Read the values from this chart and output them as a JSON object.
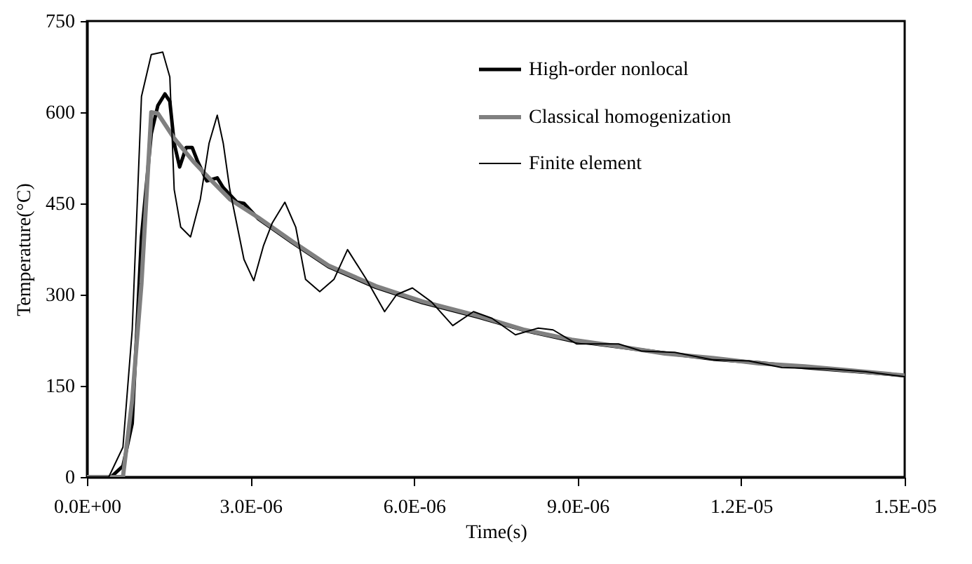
{
  "chart_data": {
    "type": "line",
    "xlabel": "Time(s)",
    "ylabel": "Temperature(°C)",
    "xlim": [
      0,
      1.5e-05
    ],
    "ylim": [
      0,
      750
    ],
    "xticks": [
      {
        "value": 0,
        "label": "0.0E+00"
      },
      {
        "value": 3e-06,
        "label": "3.0E-06"
      },
      {
        "value": 6e-06,
        "label": "6.0E-06"
      },
      {
        "value": 9e-06,
        "label": "9.0E-06"
      },
      {
        "value": 1.2e-05,
        "label": "1.2E-05"
      },
      {
        "value": 1.5e-05,
        "label": "1.5E-05"
      }
    ],
    "yticks": [
      0,
      150,
      300,
      450,
      600,
      750
    ],
    "grid": false,
    "legend": "top right",
    "marker": "none",
    "line_style": "solid",
    "series": [
      {
        "name": "High-order nonlocal",
        "color": "#000000",
        "x": [
          0,
          4.4e-07,
          6.6e-07,
          8.3e-07,
          1e-06,
          1.18e-06,
          1.3e-06,
          1.43e-06,
          1.52e-06,
          1.6e-06,
          1.7e-06,
          1.82e-06,
          1.93e-06,
          2.03e-06,
          2.2e-06,
          2.39e-06,
          2.5e-06,
          2.75e-06,
          2.88e-06,
          3.14e-06,
          3.76e-06,
          4.43e-06,
          5.3e-06,
          6.15e-06,
          7.18e-06,
          8.03e-06,
          8.89e-06,
          9.75e-06,
          1.06e-05,
          1.147e-05,
          1.232e-05,
          1.317e-05,
          1.404e-05,
          1.5e-05
        ],
        "values": [
          0,
          0,
          18,
          88,
          395,
          565,
          611,
          630,
          618,
          549,
          510,
          542,
          542,
          519,
          487,
          492,
          476,
          452,
          450,
          425,
          386,
          346,
          312,
          287,
          263,
          241,
          224,
          214,
          204,
          194,
          188,
          180,
          174,
          167
        ]
      },
      {
        "name": "Classical homogenization",
        "color": "#808080",
        "x": [
          0,
          6.6e-07,
          8.3e-07,
          1e-06,
          1.18e-06,
          1.3e-06,
          1.6e-06,
          1.95e-06,
          2.29e-06,
          2.62e-06,
          3.14e-06,
          3.76e-06,
          4.43e-06,
          5.3e-06,
          6.15e-06,
          7.18e-06,
          8.03e-06,
          8.89e-06,
          9.75e-06,
          1.06e-05,
          1.147e-05,
          1.232e-05,
          1.317e-05,
          1.404e-05,
          1.5e-05
        ],
        "values": [
          0,
          0,
          127,
          318,
          600,
          598,
          557,
          519,
          487,
          457,
          427,
          388,
          348,
          314,
          289,
          265,
          242,
          226,
          215,
          203,
          196,
          187,
          182,
          175,
          167
        ]
      },
      {
        "name": "Finite element",
        "color": "#000000",
        "x": [
          0,
          4e-07,
          6.6e-07,
          8.3e-07,
          1e-06,
          1.18e-06,
          1.39e-06,
          1.52e-06,
          1.6e-06,
          1.72e-06,
          1.9e-06,
          2.08e-06,
          2.24e-06,
          2.39e-06,
          2.5e-06,
          2.62e-06,
          2.88e-06,
          3.06e-06,
          3.24e-06,
          3.4e-06,
          3.63e-06,
          3.83e-06,
          4.01e-06,
          4.27e-06,
          4.53e-06,
          4.78e-06,
          5.12e-06,
          5.46e-06,
          5.68e-06,
          5.97e-06,
          6.32e-06,
          6.71e-06,
          7.09e-06,
          7.43e-06,
          7.86e-06,
          8.28e-06,
          8.55e-06,
          8.98e-06,
          9.75e-06,
          1.018e-05,
          1.078e-05,
          1.147e-05,
          1.214e-05,
          1.275e-05,
          1.361e-05,
          1.43e-05,
          1.5e-05
        ],
        "values": [
          0,
          0,
          49,
          242,
          626,
          695,
          699,
          658,
          473,
          411,
          395,
          457,
          549,
          595,
          549,
          473,
          358,
          323,
          381,
          418,
          452,
          411,
          325,
          305,
          325,
          374,
          326,
          272,
          300,
          311,
          288,
          249,
          272,
          261,
          234,
          245,
          242,
          219,
          219,
          207,
          205,
          193,
          191,
          180,
          178,
          173,
          165
        ]
      }
    ]
  }
}
